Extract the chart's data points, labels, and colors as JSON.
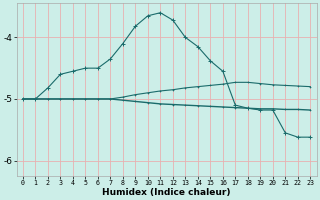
{
  "title": "",
  "xlabel": "Humidex (Indice chaleur)",
  "background_color": "#cceee8",
  "grid_color": "#e8b0b0",
  "line_color": "#1a6b6b",
  "x": [
    0,
    1,
    2,
    3,
    4,
    5,
    6,
    7,
    8,
    9,
    10,
    11,
    12,
    13,
    14,
    15,
    16,
    17,
    18,
    19,
    20,
    21,
    22,
    23
  ],
  "y_peak": [
    -5.0,
    -5.0,
    -4.82,
    -4.6,
    -4.55,
    -4.5,
    -4.5,
    -4.35,
    -4.1,
    -3.82,
    -3.65,
    -3.6,
    -3.72,
    -4.0,
    -4.15,
    -4.38,
    -4.55,
    -5.1,
    -5.15,
    -5.18,
    -5.18,
    -5.55,
    -5.62,
    -5.62
  ],
  "y_upper": [
    -5.0,
    -5.0,
    -5.0,
    -5.0,
    -5.0,
    -5.0,
    -5.0,
    -5.0,
    -4.97,
    -4.93,
    -4.9,
    -4.87,
    -4.85,
    -4.82,
    -4.8,
    -4.78,
    -4.76,
    -4.73,
    -4.73,
    -4.75,
    -4.77,
    -4.78,
    -4.79,
    -4.8
  ],
  "y_lower": [
    -5.0,
    -5.0,
    -5.0,
    -5.0,
    -5.0,
    -5.0,
    -5.0,
    -5.0,
    -5.02,
    -5.04,
    -5.06,
    -5.08,
    -5.09,
    -5.1,
    -5.11,
    -5.12,
    -5.13,
    -5.14,
    -5.15,
    -5.16,
    -5.16,
    -5.17,
    -5.17,
    -5.18
  ],
  "ylim": [
    -6.25,
    -3.45
  ],
  "yticks": [
    -6,
    -5,
    -4
  ],
  "xticks": [
    0,
    1,
    2,
    3,
    4,
    5,
    6,
    7,
    8,
    9,
    10,
    11,
    12,
    13,
    14,
    15,
    16,
    17,
    18,
    19,
    20,
    21,
    22,
    23
  ]
}
